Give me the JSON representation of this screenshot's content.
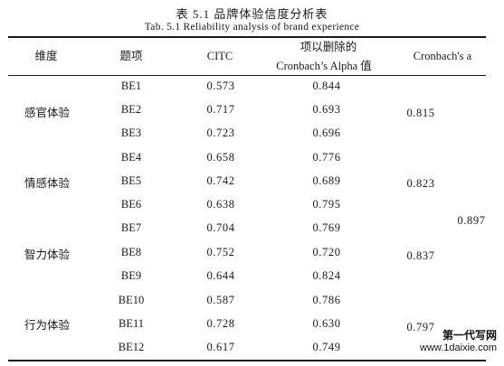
{
  "caption": {
    "cn": "表 5.1 品牌体验信度分析表",
    "en": "Tab. 5.1 Reliability analysis of brand experience"
  },
  "headers": {
    "dimension": "维度",
    "item": "题项",
    "citc": "CITC",
    "deleted_line1": "项以删除的",
    "deleted_line2": "Cronbach’s Alpha 值",
    "alpha": "Cronbach's a"
  },
  "dimensions": [
    {
      "name": "感官体验",
      "alpha": "0.815"
    },
    {
      "name": "情感体验",
      "alpha": "0.823"
    },
    {
      "name": "智力体验",
      "alpha": "0.837"
    },
    {
      "name": "行为体验",
      "alpha": "0.797"
    }
  ],
  "overall_alpha": "0.897",
  "rows": [
    {
      "item": "BE1",
      "citc": "0.573",
      "deleted": "0.844"
    },
    {
      "item": "BE2",
      "citc": "0.717",
      "deleted": "0.693"
    },
    {
      "item": "BE3",
      "citc": "0.723",
      "deleted": "0.696"
    },
    {
      "item": "BE4",
      "citc": "0.658",
      "deleted": "0.776"
    },
    {
      "item": "BE5",
      "citc": "0.742",
      "deleted": "0.689"
    },
    {
      "item": "BE6",
      "citc": "0.638",
      "deleted": "0.795"
    },
    {
      "item": "BE7",
      "citc": "0.704",
      "deleted": "0.769"
    },
    {
      "item": "BE8",
      "citc": "0.752",
      "deleted": "0.720"
    },
    {
      "item": "BE9",
      "citc": "0.644",
      "deleted": "0.824"
    },
    {
      "item": "BE10",
      "citc": "0.587",
      "deleted": "0.786"
    },
    {
      "item": "BE11",
      "citc": "0.728",
      "deleted": "0.630"
    },
    {
      "item": "BE12",
      "citc": "0.617",
      "deleted": "0.749"
    }
  ],
  "watermark": {
    "line1": "第一代写网",
    "line2": "www.1daixie.com"
  }
}
